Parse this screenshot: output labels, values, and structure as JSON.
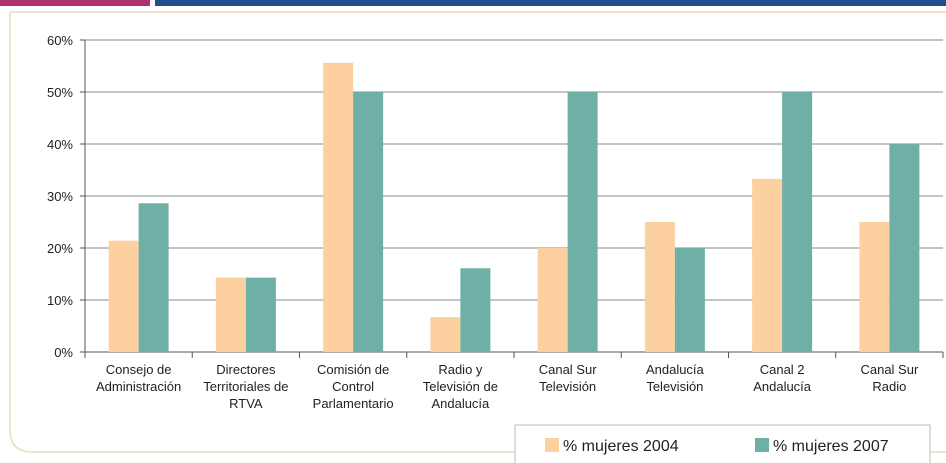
{
  "chart_data": {
    "type": "bar",
    "categories": [
      "Consejo de\nAdministración",
      "Directores\nTerritoriales de\nRTVA",
      "Comisión de\nControl\nParlamentario",
      "Radio y\nTelevisión de\nAndalucía",
      "Canal Sur\nTelevisión",
      "Andalucía\nTelevisión",
      "Canal 2\nAndalucía",
      "Canal Sur\nRadio"
    ],
    "series": [
      {
        "name": "% mujeres 2004",
        "color": "#fdd09f",
        "values": [
          21.4,
          14.3,
          55.6,
          6.7,
          20,
          25,
          33.3,
          25
        ]
      },
      {
        "name": "% mujeres 2007",
        "color": "#6fb0a6",
        "values": [
          28.6,
          14.3,
          50,
          16.1,
          50,
          20,
          50,
          40
        ]
      }
    ],
    "ylim": [
      0,
      60
    ],
    "yticks": [
      {
        "value": 0,
        "label": "0%"
      },
      {
        "value": 10,
        "label": "10%"
      },
      {
        "value": 20,
        "label": "20%"
      },
      {
        "value": 30,
        "label": "30%"
      },
      {
        "value": 40,
        "label": "40%"
      },
      {
        "value": 50,
        "label": "50%"
      },
      {
        "value": 60,
        "label": "60%"
      }
    ],
    "grid": true,
    "legend": "bottom-right"
  }
}
